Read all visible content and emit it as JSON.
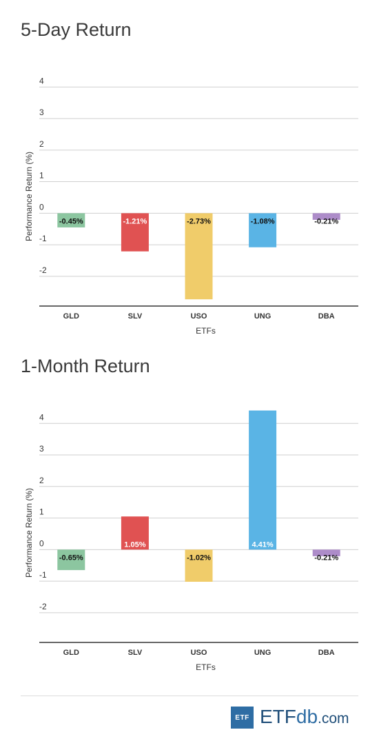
{
  "chart_data": [
    {
      "type": "bar",
      "title": "5-Day Return",
      "xlabel": "ETFs",
      "ylabel": "Performance Return (%)",
      "categories": [
        "GLD",
        "SLV",
        "USO",
        "UNG",
        "DBA"
      ],
      "values": [
        -0.45,
        -1.21,
        -2.73,
        -1.08,
        -0.21
      ],
      "data_labels": [
        "-0.45%",
        "-1.21%",
        "-2.73%",
        "-1.08%",
        "-0.21%"
      ],
      "colors": [
        "#8cc6a0",
        "#e05252",
        "#f0cc6a",
        "#5ab4e5",
        "#ad8cc9"
      ],
      "ylim": [
        -2.9,
        4.4
      ],
      "yticks": [
        4,
        3,
        2,
        1,
        0,
        -1,
        -2
      ],
      "grid": true
    },
    {
      "type": "bar",
      "title": "1-Month Return",
      "xlabel": "ETFs",
      "ylabel": "Performance Return (%)",
      "categories": [
        "GLD",
        "SLV",
        "USO",
        "UNG",
        "DBA"
      ],
      "values": [
        -0.65,
        1.05,
        -1.02,
        4.41,
        -0.21
      ],
      "data_labels": [
        "-0.65%",
        "1.05%",
        "-1.02%",
        "4.41%",
        "-0.21%"
      ],
      "colors": [
        "#8cc6a0",
        "#e05252",
        "#f0cc6a",
        "#5ab4e5",
        "#ad8cc9"
      ],
      "ylim": [
        -2.9,
        4.4
      ],
      "yticks": [
        4,
        3,
        2,
        1,
        0,
        -1,
        -2
      ],
      "grid": true
    }
  ],
  "logo": {
    "box": "ETF",
    "main": "ETF",
    "db": "db",
    "com": ".com"
  }
}
